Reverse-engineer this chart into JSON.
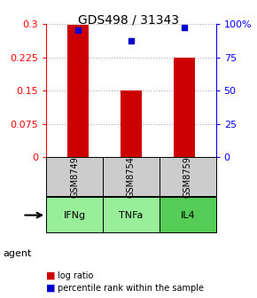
{
  "title": "GDS498 / 31343",
  "samples": [
    "GSM8749",
    "GSM8754",
    "GSM8759"
  ],
  "agents": [
    "IFNg",
    "TNFa",
    "IL4"
  ],
  "log_ratios": [
    0.298,
    0.15,
    0.225
  ],
  "percentile_ranks": [
    95.0,
    87.0,
    97.0
  ],
  "bar_color": "#cc0000",
  "dot_color": "#0000cc",
  "left_yticks": [
    0,
    0.075,
    0.15,
    0.225,
    0.3
  ],
  "left_yticklabels": [
    "0",
    "0.075",
    "0.15",
    "0.225",
    "0.3"
  ],
  "right_yticks": [
    0,
    25,
    50,
    75,
    100
  ],
  "right_yticklabels": [
    "0",
    "25",
    "50",
    "75",
    "100%"
  ],
  "ylim_left": [
    0,
    0.3
  ],
  "ylim_right": [
    0,
    100
  ],
  "sample_bg_color": "#cccccc",
  "agent_bg_color": "#99ee99",
  "agent_bg_color_dark": "#55cc55",
  "grid_color": "#aaaaaa",
  "bar_width": 0.4,
  "legend_log_ratio_label": "log ratio",
  "legend_percentile_label": "percentile rank within the sample"
}
